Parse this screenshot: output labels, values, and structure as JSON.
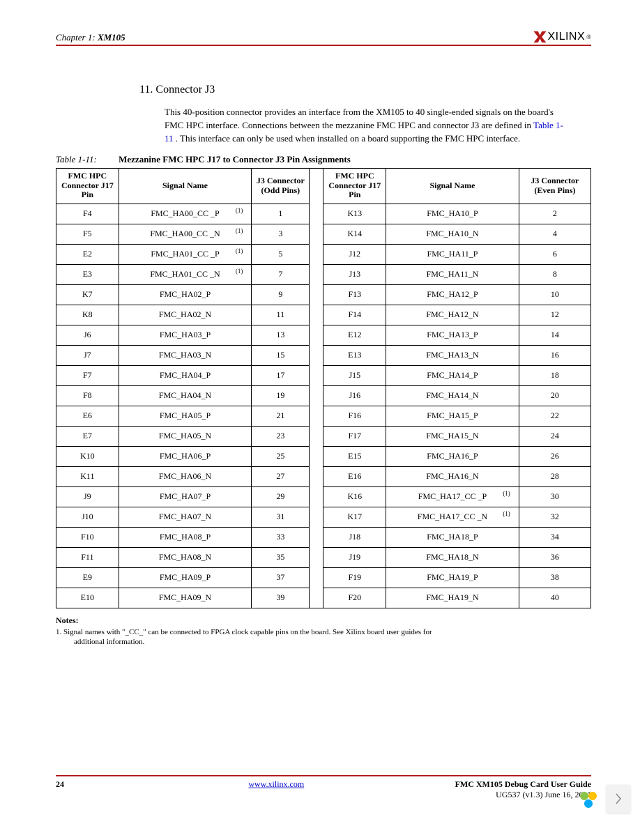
{
  "header": {
    "chapter": "Chapter 1:",
    "title": "XM105",
    "brand": "XILINX"
  },
  "section": {
    "number": "11.",
    "title": "Connector J3"
  },
  "paragraph": {
    "p1": "This 40-position connector provides an interface from the XM105 to 40 single-ended signals on the board's FMC HPC interface. Connections between the mezzanine FMC HPC and connector J3 are defined in ",
    "link": "Table 1-11",
    "p2": ". This interface can only be used when installed on a board supporting the FMC HPC interface."
  },
  "tableCaption": {
    "prefix": "Table 1-11:",
    "title": "Mezzanine FMC HPC J17 to Connector J3 Pin Assignments"
  },
  "columns": {
    "c1": "FMC HPC Connector J17 Pin",
    "c2": "Signal Name",
    "c3": "J3 Connector (Odd Pins)",
    "c4": "FMC HPC Connector J17 Pin",
    "c5": "Signal Name",
    "c6": "J3 Connector (Even Pins)"
  },
  "rows": [
    {
      "a": "F4",
      "b": "FMC_HA00_CC _P",
      "bn": "(1)",
      "c": "1",
      "d": "K13",
      "e": "FMC_HA10_P",
      "en": "",
      "f": "2"
    },
    {
      "a": "F5",
      "b": "FMC_HA00_CC _N",
      "bn": "(1)",
      "c": "3",
      "d": "K14",
      "e": "FMC_HA10_N",
      "en": "",
      "f": "4"
    },
    {
      "a": "E2",
      "b": "FMC_HA01_CC _P",
      "bn": "(1)",
      "c": "5",
      "d": "J12",
      "e": "FMC_HA11_P",
      "en": "",
      "f": "6"
    },
    {
      "a": "E3",
      "b": "FMC_HA01_CC _N",
      "bn": "(1)",
      "c": "7",
      "d": "J13",
      "e": "FMC_HA11_N",
      "en": "",
      "f": "8"
    },
    {
      "a": "K7",
      "b": "FMC_HA02_P",
      "bn": "",
      "c": "9",
      "d": "F13",
      "e": "FMC_HA12_P",
      "en": "",
      "f": "10"
    },
    {
      "a": "K8",
      "b": "FMC_HA02_N",
      "bn": "",
      "c": "11",
      "d": "F14",
      "e": "FMC_HA12_N",
      "en": "",
      "f": "12"
    },
    {
      "a": "J6",
      "b": "FMC_HA03_P",
      "bn": "",
      "c": "13",
      "d": "E12",
      "e": "FMC_HA13_P",
      "en": "",
      "f": "14"
    },
    {
      "a": "J7",
      "b": "FMC_HA03_N",
      "bn": "",
      "c": "15",
      "d": "E13",
      "e": "FMC_HA13_N",
      "en": "",
      "f": "16"
    },
    {
      "a": "F7",
      "b": "FMC_HA04_P",
      "bn": "",
      "c": "17",
      "d": "J15",
      "e": "FMC_HA14_P",
      "en": "",
      "f": "18"
    },
    {
      "a": "F8",
      "b": "FMC_HA04_N",
      "bn": "",
      "c": "19",
      "d": "J16",
      "e": "FMC_HA14_N",
      "en": "",
      "f": "20"
    },
    {
      "a": "E6",
      "b": "FMC_HA05_P",
      "bn": "",
      "c": "21",
      "d": "F16",
      "e": "FMC_HA15_P",
      "en": "",
      "f": "22"
    },
    {
      "a": "E7",
      "b": "FMC_HA05_N",
      "bn": "",
      "c": "23",
      "d": "F17",
      "e": "FMC_HA15_N",
      "en": "",
      "f": "24"
    },
    {
      "a": "K10",
      "b": "FMC_HA06_P",
      "bn": "",
      "c": "25",
      "d": "E15",
      "e": "FMC_HA16_P",
      "en": "",
      "f": "26"
    },
    {
      "a": "K11",
      "b": "FMC_HA06_N",
      "bn": "",
      "c": "27",
      "d": "E16",
      "e": "FMC_HA16_N",
      "en": "",
      "f": "28"
    },
    {
      "a": "J9",
      "b": "FMC_HA07_P",
      "bn": "",
      "c": "29",
      "d": "K16",
      "e": "FMC_HA17_CC _P",
      "en": "(1)",
      "f": "30"
    },
    {
      "a": "J10",
      "b": "FMC_HA07_N",
      "bn": "",
      "c": "31",
      "d": "K17",
      "e": "FMC_HA17_CC _N",
      "en": "(1)",
      "f": "32"
    },
    {
      "a": "F10",
      "b": "FMC_HA08_P",
      "bn": "",
      "c": "33",
      "d": "J18",
      "e": "FMC_HA18_P",
      "en": "",
      "f": "34"
    },
    {
      "a": "F11",
      "b": "FMC_HA08_N",
      "bn": "",
      "c": "35",
      "d": "J19",
      "e": "FMC_HA18_N",
      "en": "",
      "f": "36"
    },
    {
      "a": "E9",
      "b": "FMC_HA09_P",
      "bn": "",
      "c": "37",
      "d": "F19",
      "e": "FMC_HA19_P",
      "en": "",
      "f": "38"
    },
    {
      "a": "E10",
      "b": "FMC_HA09_N",
      "bn": "",
      "c": "39",
      "d": "F20",
      "e": "FMC_HA19_N",
      "en": "",
      "f": "40"
    }
  ],
  "notes": {
    "heading": "Notes:",
    "n1a": "1. Signal names with \"_CC_\" can be connected to FPGA clock capable pins on the board. See Xilinx board user guides for",
    "n1b": "additional information."
  },
  "footer": {
    "page": "24",
    "link": "www.xilinx.com",
    "doc": "FMC XM105 Debug Card User Guide",
    "rev": "UG537 (v1.3) June 16, 2011"
  }
}
